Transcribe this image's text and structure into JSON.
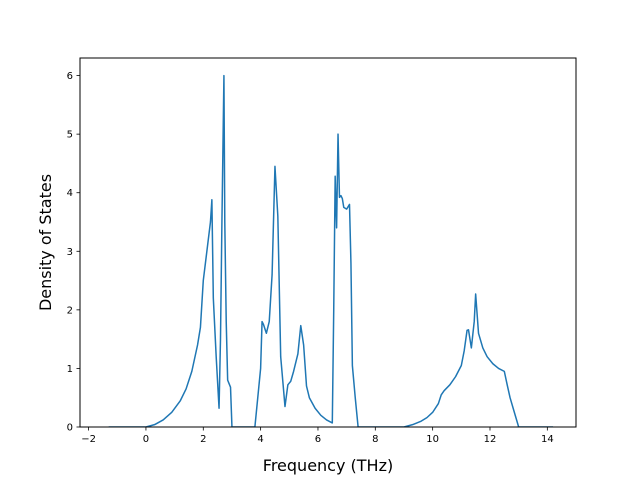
{
  "chart_data": {
    "type": "line",
    "title": "",
    "xlabel": "Frequency (THz)",
    "ylabel": "Density of States",
    "xlim": [
      -2.3,
      15.0
    ],
    "ylim": [
      0,
      6.3
    ],
    "grid": false,
    "xticks": [
      -2,
      0,
      2,
      4,
      6,
      8,
      10,
      12,
      14
    ],
    "xtick_labels": [
      "−2",
      "0",
      "2",
      "4",
      "6",
      "8",
      "10",
      "12",
      "14"
    ],
    "yticks": [
      0,
      1,
      2,
      3,
      4,
      5,
      6
    ],
    "ytick_labels": [
      "0",
      "1",
      "2",
      "3",
      "4",
      "5",
      "6"
    ],
    "color": "#1f77b4",
    "series": [
      {
        "x": [
          -1.3,
          0.0,
          0.3,
          0.6,
          0.9,
          1.2,
          1.4,
          1.6,
          1.8,
          1.9,
          2.0,
          2.1,
          2.15,
          2.25,
          2.3,
          2.35,
          2.45,
          2.55,
          2.6,
          2.65,
          2.72,
          2.75,
          2.8,
          2.85,
          2.95,
          3.0,
          3.1,
          3.8,
          3.9,
          4.0,
          4.05,
          4.1,
          4.2,
          4.3,
          4.4,
          4.5,
          4.6,
          4.7,
          4.85,
          4.95,
          5.05,
          5.15,
          5.3,
          5.4,
          5.5,
          5.6,
          5.7,
          5.9,
          6.1,
          6.3,
          6.5,
          6.55,
          6.6,
          6.65,
          6.7,
          6.75,
          6.8,
          6.85,
          6.9,
          7.0,
          7.1,
          7.15,
          7.2,
          7.3,
          7.4,
          7.5,
          8.0,
          8.5,
          9.0,
          9.3,
          9.6,
          9.8,
          10.0,
          10.2,
          10.3,
          10.4,
          10.6,
          10.8,
          11.0,
          11.1,
          11.2,
          11.25,
          11.35,
          11.45,
          11.5,
          11.6,
          11.75,
          11.9,
          12.1,
          12.3,
          12.5,
          12.6,
          12.7,
          12.85,
          13.0,
          13.5,
          14.2
        ],
        "y": [
          0.0,
          0.0,
          0.04,
          0.12,
          0.25,
          0.45,
          0.65,
          0.95,
          1.4,
          1.7,
          2.5,
          2.9,
          3.1,
          3.5,
          3.88,
          2.2,
          1.2,
          0.32,
          1.5,
          3.5,
          6.0,
          3.5,
          1.8,
          0.8,
          0.68,
          0.0,
          0.0,
          0.0,
          0.5,
          1.0,
          1.8,
          1.75,
          1.6,
          1.8,
          2.6,
          4.45,
          3.6,
          1.2,
          0.35,
          0.72,
          0.78,
          0.95,
          1.25,
          1.73,
          1.4,
          0.7,
          0.5,
          0.32,
          0.2,
          0.12,
          0.07,
          2.0,
          4.28,
          3.4,
          5.0,
          3.92,
          3.95,
          3.9,
          3.75,
          3.72,
          3.8,
          2.8,
          1.05,
          0.5,
          0.0,
          0.0,
          0.0,
          0.0,
          0.0,
          0.04,
          0.1,
          0.16,
          0.25,
          0.4,
          0.55,
          0.62,
          0.72,
          0.86,
          1.05,
          1.3,
          1.65,
          1.66,
          1.35,
          1.8,
          2.27,
          1.6,
          1.35,
          1.2,
          1.08,
          1.0,
          0.95,
          0.72,
          0.5,
          0.25,
          0.0,
          0.0,
          0.0
        ]
      }
    ]
  }
}
